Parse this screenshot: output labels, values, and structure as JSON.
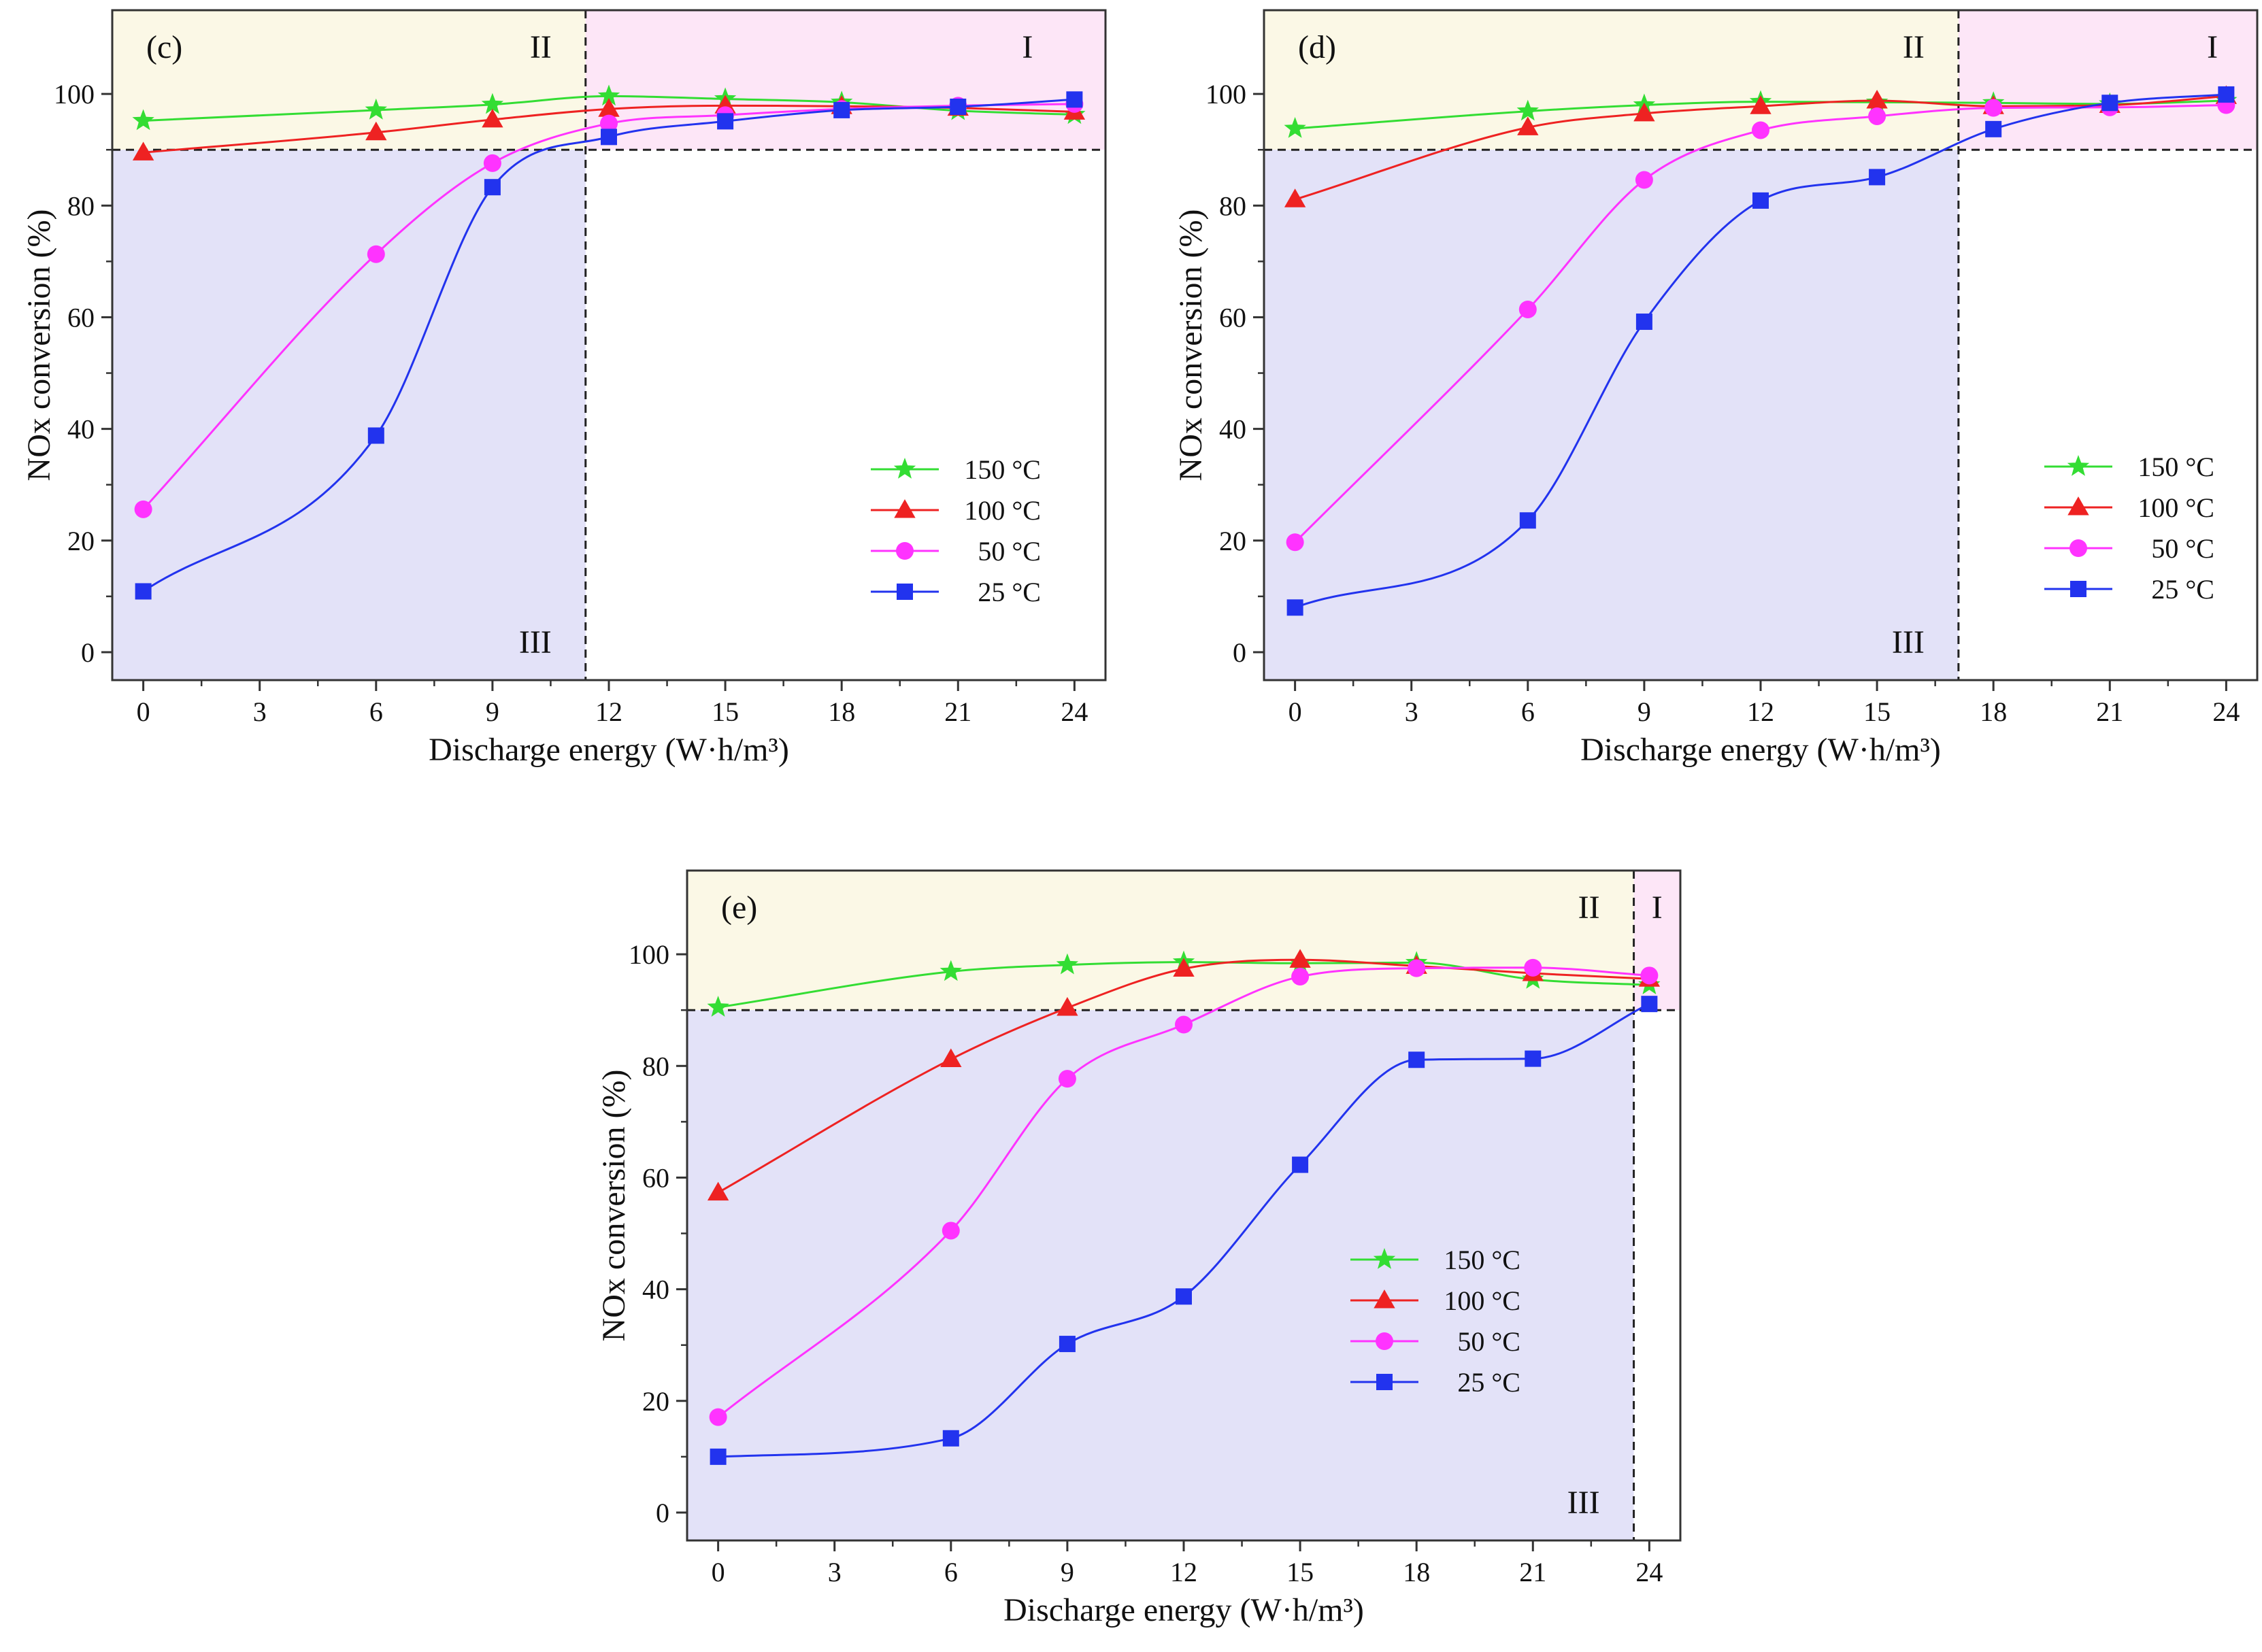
{
  "colors": {
    "zone_I": "#fde6f7",
    "zone_II": "#fbf8e6",
    "zone_III": "#e3e2f8",
    "axis": "#333333",
    "ref_line": "#222222"
  },
  "chart_data": [
    {
      "type": "line",
      "panel_label": "(c)",
      "xlabel": "Discharge energy (W·h/m³)",
      "ylabel": "NOx conversion (%)",
      "xlim": [
        -0.8,
        24.8
      ],
      "ylim": [
        -5,
        115
      ],
      "xticks": [
        0,
        3,
        6,
        9,
        12,
        15,
        18,
        21,
        24
      ],
      "yticks": [
        0,
        20,
        40,
        60,
        80,
        100
      ],
      "threshold_y": 90,
      "threshold_x": 11.4,
      "zone_labels": {
        "I": "I",
        "II": "II",
        "III": "III"
      },
      "series": [
        {
          "name": "150 °C",
          "color": "#33dd33",
          "marker": "star",
          "x": [
            0,
            6,
            9,
            12,
            15,
            18,
            21,
            24
          ],
          "values": [
            95.2,
            97.1,
            98.1,
            99.6,
            99.1,
            98.5,
            97.0,
            96.3
          ]
        },
        {
          "name": "100 °C",
          "color": "#ee2222",
          "marker": "triangle",
          "x": [
            0,
            6,
            9,
            12,
            15,
            18,
            21,
            24
          ],
          "values": [
            89.5,
            93.1,
            95.4,
            97.3,
            97.9,
            97.8,
            97.5,
            96.8
          ]
        },
        {
          "name": "50 °C",
          "color": "#ff33ff",
          "marker": "circle",
          "x": [
            0,
            6,
            9,
            12,
            15,
            18,
            21,
            24
          ],
          "values": [
            25.6,
            71.3,
            87.6,
            94.7,
            96.2,
            97.3,
            97.9,
            98.2
          ]
        },
        {
          "name": "25 °C",
          "color": "#2233ee",
          "marker": "square",
          "x": [
            0,
            6,
            9,
            12,
            15,
            18,
            21,
            24
          ],
          "values": [
            10.9,
            38.8,
            83.3,
            92.3,
            95.1,
            97.1,
            97.7,
            99.0
          ]
        }
      ]
    },
    {
      "type": "line",
      "panel_label": "(d)",
      "xlabel": "Discharge energy (W·h/m³)",
      "ylabel": "NOx conversion (%)",
      "xlim": [
        -0.8,
        24.8
      ],
      "ylim": [
        -5,
        115
      ],
      "xticks": [
        0,
        3,
        6,
        9,
        12,
        15,
        18,
        21,
        24
      ],
      "yticks": [
        0,
        20,
        40,
        60,
        80,
        100
      ],
      "threshold_y": 90,
      "threshold_x": 17.1,
      "zone_labels": {
        "I": "I",
        "II": "II",
        "III": "III"
      },
      "series": [
        {
          "name": "150 °C",
          "color": "#33dd33",
          "marker": "star",
          "x": [
            0,
            6,
            9,
            12,
            15,
            18,
            21,
            24
          ],
          "values": [
            93.8,
            96.9,
            98.0,
            98.6,
            98.5,
            98.4,
            98.2,
            98.8
          ]
        },
        {
          "name": "100 °C",
          "color": "#ee2222",
          "marker": "triangle",
          "x": [
            0,
            6,
            9,
            12,
            15,
            18,
            21,
            24
          ],
          "values": [
            81.1,
            94.0,
            96.5,
            97.8,
            98.8,
            97.8,
            98.0,
            99.6
          ]
        },
        {
          "name": "50 °C",
          "color": "#ff33ff",
          "marker": "circle",
          "x": [
            0,
            6,
            9,
            12,
            15,
            18,
            21,
            24
          ],
          "values": [
            19.7,
            61.4,
            84.6,
            93.5,
            96.0,
            97.5,
            97.6,
            98.0
          ]
        },
        {
          "name": "25 °C",
          "color": "#2233ee",
          "marker": "square",
          "x": [
            0,
            6,
            9,
            12,
            15,
            18,
            21,
            24
          ],
          "values": [
            8.0,
            23.6,
            59.2,
            80.9,
            85.1,
            93.7,
            98.4,
            99.9
          ]
        }
      ]
    },
    {
      "type": "line",
      "panel_label": "(e)",
      "xlabel": "Discharge energy (W·h/m³)",
      "ylabel": "NOx conversion (%)",
      "xlim": [
        -0.8,
        24.8
      ],
      "ylim": [
        -5,
        115
      ],
      "xticks": [
        0,
        3,
        6,
        9,
        12,
        15,
        18,
        21,
        24
      ],
      "yticks": [
        0,
        20,
        40,
        60,
        80,
        100
      ],
      "threshold_y": 90,
      "threshold_x": 23.6,
      "zone_labels": {
        "I": "I",
        "II": "II",
        "III": "III"
      },
      "series": [
        {
          "name": "150 °C",
          "color": "#33dd33",
          "marker": "star",
          "x": [
            0,
            6,
            9,
            12,
            15,
            18,
            21,
            24
          ],
          "values": [
            90.5,
            96.9,
            98.1,
            98.6,
            98.4,
            98.5,
            95.5,
            94.5
          ]
        },
        {
          "name": "100 °C",
          "color": "#ee2222",
          "marker": "triangle",
          "x": [
            0,
            6,
            9,
            12,
            15,
            18,
            21,
            24
          ],
          "values": [
            57.3,
            81.2,
            90.4,
            97.4,
            99.0,
            97.9,
            96.6,
            95.6
          ]
        },
        {
          "name": "50 °C",
          "color": "#ff33ff",
          "marker": "circle",
          "x": [
            0,
            6,
            9,
            12,
            15,
            18,
            21,
            24
          ],
          "values": [
            17.1,
            50.5,
            77.7,
            87.4,
            96.0,
            97.5,
            97.6,
            96.2
          ]
        },
        {
          "name": "25 °C",
          "color": "#2233ee",
          "marker": "square",
          "x": [
            0,
            6,
            9,
            12,
            15,
            18,
            21,
            24
          ],
          "values": [
            10.0,
            13.3,
            30.2,
            38.7,
            62.3,
            81.1,
            81.3,
            91.1
          ]
        }
      ]
    }
  ]
}
